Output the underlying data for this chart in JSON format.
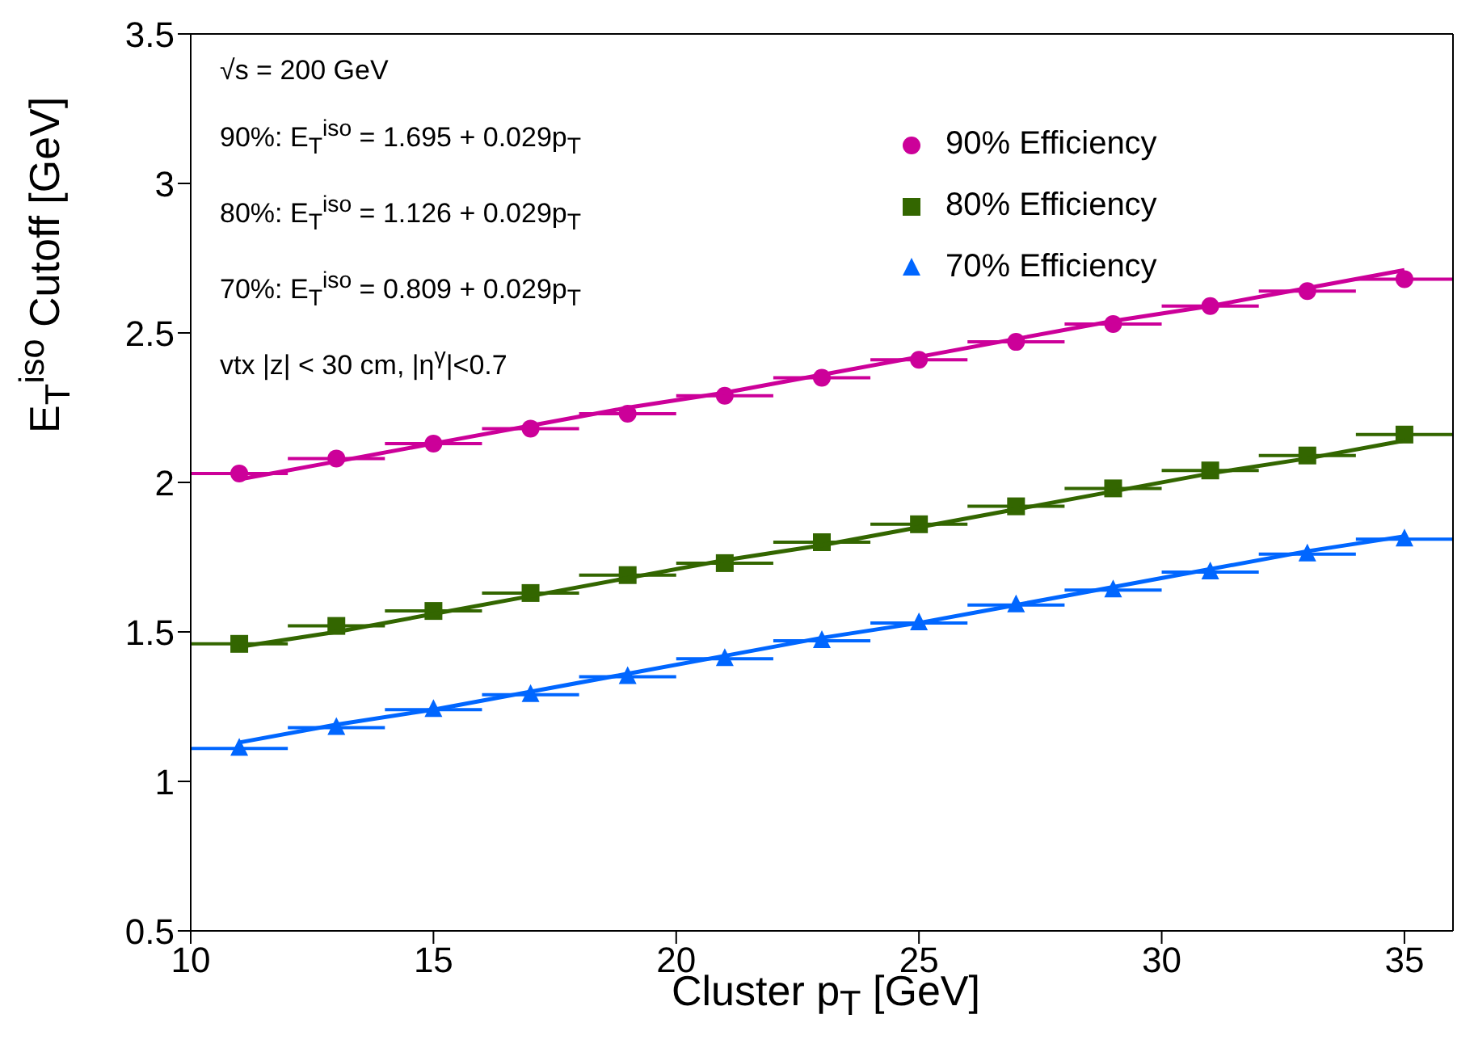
{
  "chart_data": {
    "type": "scatter",
    "xlabel": "Cluster p$_{T}$ [GeV]",
    "ylabel": "E$_{T}$$^{iso}$ Cutoff [GeV]",
    "x": [
      11,
      13,
      15,
      17,
      19,
      21,
      23,
      25,
      27,
      29,
      31,
      33,
      35
    ],
    "series": [
      {
        "name": "90% Efficiency",
        "color": "#cc0099",
        "marker": "circle",
        "values": [
          2.03,
          2.08,
          2.13,
          2.18,
          2.23,
          2.29,
          2.35,
          2.41,
          2.47,
          2.53,
          2.59,
          2.64,
          2.68
        ],
        "xerrors": [
          1,
          1,
          1,
          1,
          1,
          1,
          1,
          1,
          1,
          1,
          1,
          1,
          1
        ]
      },
      {
        "name": "80% Efficiency",
        "color": "#336600",
        "marker": "square",
        "values": [
          1.46,
          1.52,
          1.57,
          1.63,
          1.69,
          1.73,
          1.8,
          1.86,
          1.92,
          1.98,
          2.04,
          2.09,
          2.16
        ],
        "xerrors": [
          1,
          1,
          1,
          1,
          1,
          1,
          1,
          1,
          1,
          1,
          1,
          1,
          1
        ]
      },
      {
        "name": "70% Efficiency",
        "color": "#0066ff",
        "marker": "triangle",
        "values": [
          1.11,
          1.18,
          1.24,
          1.29,
          1.35,
          1.41,
          1.47,
          1.53,
          1.59,
          1.64,
          1.7,
          1.76,
          1.81
        ],
        "xerrors": [
          1,
          1,
          1,
          1,
          1,
          1,
          1,
          1,
          1,
          1,
          1,
          1,
          1
        ]
      },
      {
        "type": "line",
        "color": "#cc0099",
        "values": [
          2.01,
          2.07,
          2.13,
          2.19,
          2.25,
          2.3,
          2.36,
          2.42,
          2.48,
          2.54,
          2.59,
          2.65,
          2.71
        ]
      },
      {
        "type": "line",
        "color": "#336600",
        "values": [
          1.45,
          1.5,
          1.56,
          1.62,
          1.68,
          1.74,
          1.79,
          1.85,
          1.91,
          1.97,
          2.03,
          2.08,
          2.14
        ]
      },
      {
        "type": "line",
        "color": "#0066ff",
        "values": [
          1.13,
          1.19,
          1.24,
          1.3,
          1.36,
          1.42,
          1.48,
          1.53,
          1.59,
          1.65,
          1.71,
          1.77,
          1.82
        ]
      }
    ],
    "xlim": [
      10,
      36
    ],
    "xticks": [
      10,
      15,
      20,
      25,
      30,
      35
    ],
    "ylim": [
      0.5,
      3.5
    ],
    "yticks": [
      0.5,
      1,
      1.5,
      2,
      2.5,
      3,
      3.5
    ],
    "grid": false,
    "legend": "top right",
    "annotations": [
      "√s = 200 GeV",
      "90%: E$_{T}$$^{iso}$ = 1.695  + 0.029p$_{T}$",
      "80%: E$_{T}$$^{iso}$ = 1.126  + 0.029p$_{T}$",
      "70%: E$_{T}$$^{iso}$ = 0.809  + 0.029p$_{T}$",
      "vtx |z| < 30 cm, |η$^{γ}$|<0.7"
    ]
  }
}
